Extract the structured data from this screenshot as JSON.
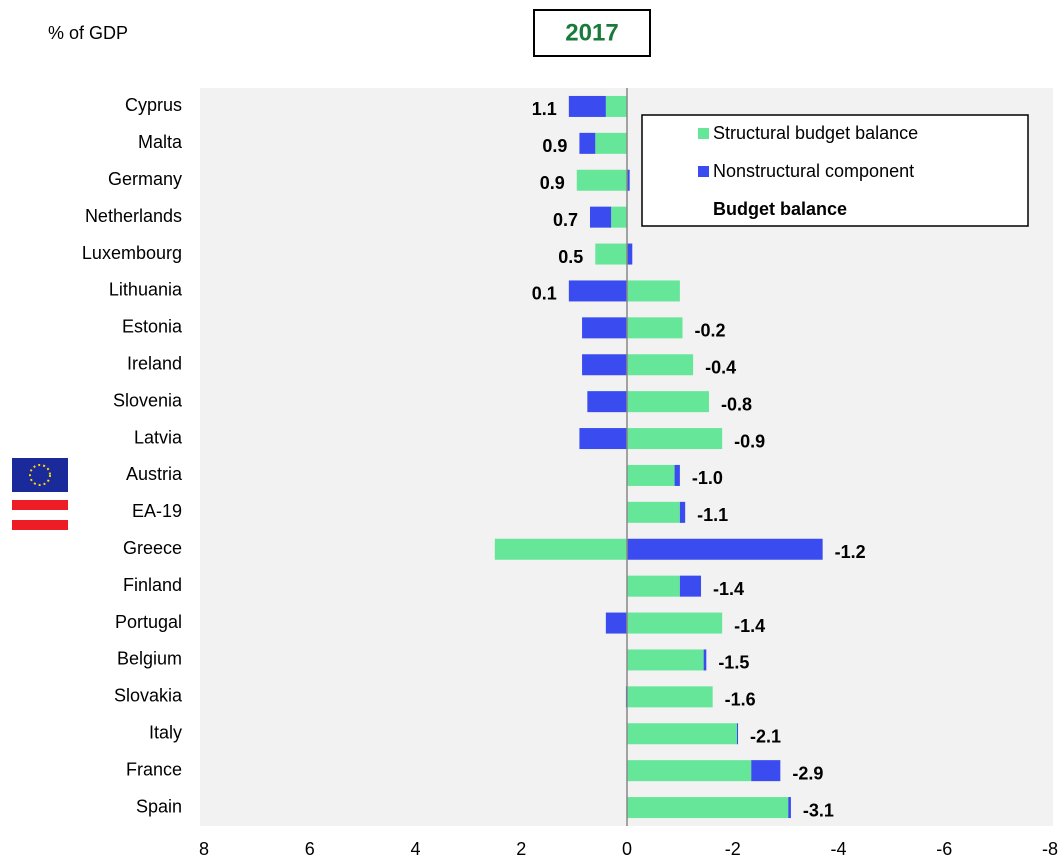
{
  "chart_data": {
    "type": "bar",
    "orientation": "horizontal",
    "stacked": true,
    "title": "2017",
    "subtitle": "% of GDP",
    "categories": [
      "Cyprus",
      "Malta",
      "Germany",
      "Netherlands",
      "Luxembourg",
      "Lithuania",
      "Estonia",
      "Ireland",
      "Slovenia",
      "Latvia",
      "Austria",
      "EA-19",
      "Greece",
      "Finland",
      "Portugal",
      "Belgium",
      "Slovakia",
      "Italy",
      "France",
      "Spain"
    ],
    "series": [
      {
        "name": "Structural budget balance",
        "color": "#66e699",
        "values": [
          0.4,
          0.6,
          0.95,
          0.3,
          0.6,
          -1.0,
          -1.05,
          -1.25,
          -1.55,
          -1.8,
          -0.9,
          -1.0,
          2.5,
          -1.0,
          -1.8,
          -1.45,
          -1.62,
          -2.08,
          -2.35,
          -3.05
        ]
      },
      {
        "name": "Nonstructural component",
        "color": "#3a4cf0",
        "values": [
          0.7,
          0.3,
          -0.05,
          0.4,
          -0.1,
          1.1,
          0.85,
          0.85,
          0.75,
          0.9,
          -0.1,
          -0.1,
          -3.7,
          -0.4,
          0.4,
          -0.05,
          0.02,
          -0.02,
          -0.55,
          -0.05
        ]
      }
    ],
    "totals": {
      "name": "Budget balance",
      "values": [
        1.1,
        0.9,
        0.9,
        0.7,
        0.5,
        0.1,
        -0.2,
        -0.4,
        -0.8,
        -0.9,
        -1.0,
        -1.1,
        -1.2,
        -1.4,
        -1.4,
        -1.5,
        -1.6,
        -2.1,
        -2.9,
        -3.1
      ],
      "value_labels": [
        "1.1",
        "0.9",
        "0.9",
        "0.7",
        "0.5",
        "0.1",
        "-0.2",
        "-0.4",
        "-0.8",
        "-0.9",
        "-1.0",
        "-1.1",
        "-1.2",
        "-1.4",
        "-1.4",
        "-1.5",
        "-1.6",
        "-2.1",
        "-2.9",
        "-3.1"
      ]
    },
    "xlim": [
      8,
      -8
    ],
    "xticks": [
      8,
      6,
      4,
      2,
      0,
      -2,
      -4,
      -6,
      -8
    ]
  }
}
